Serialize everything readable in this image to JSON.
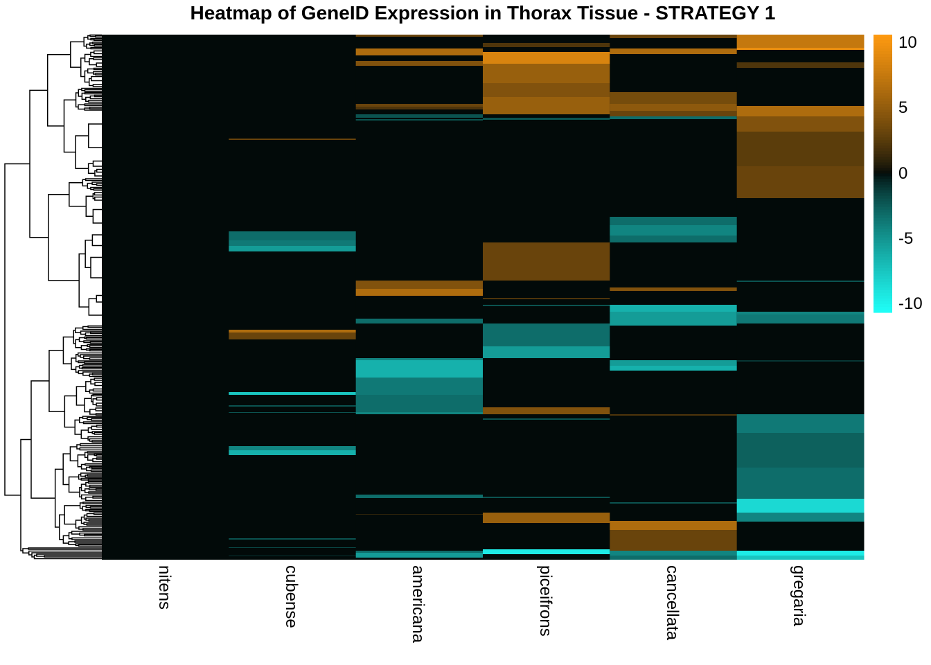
{
  "chart_data": {
    "type": "heatmap",
    "title": "Heatmap of GeneID Expression in Thorax Tissue - STRATEGY 1",
    "columns": [
      "nitens",
      "cubense",
      "americana",
      "piceifrons",
      "cancellata",
      "gregaria"
    ],
    "row_count": 758,
    "row_dendrogram": true,
    "default_value": 0,
    "colorscale": {
      "min": -10,
      "max": 10,
      "ticks": [
        10,
        5,
        0,
        -5,
        -10
      ],
      "colors": {
        "low": "#20fff8",
        "mid": "#020a09",
        "high": "#ff9a10"
      }
    },
    "bands_note_units": "rows (gene index, top to bottom), value",
    "bands": {
      "nitens": [],
      "cubense": [
        [
          150,
          152,
          3
        ],
        [
          284,
          297,
          -3
        ],
        [
          297,
          305,
          -3.5
        ],
        [
          305,
          313,
          -5
        ],
        [
          376,
          430,
          0
        ],
        [
          426,
          430,
          6
        ],
        [
          430,
          440,
          3
        ],
        [
          516,
          520,
          -7
        ],
        [
          535,
          537,
          -2
        ],
        [
          545,
          546,
          -2
        ],
        [
          594,
          600,
          -4
        ],
        [
          600,
          607,
          -6
        ],
        [
          727,
          729,
          -2
        ],
        [
          740,
          741,
          -1.5
        ],
        [
          752,
          753,
          -1
        ]
      ],
      "americana": [
        [
          0,
          3,
          3
        ],
        [
          20,
          30,
          6
        ],
        [
          38,
          45,
          4
        ],
        [
          100,
          104,
          3
        ],
        [
          104,
          108,
          2
        ],
        [
          115,
          120,
          -2
        ],
        [
          122,
          124,
          -2
        ],
        [
          355,
          367,
          4
        ],
        [
          367,
          377,
          6
        ],
        [
          410,
          417,
          -3
        ],
        [
          467,
          470,
          -4
        ],
        [
          470,
          495,
          -6
        ],
        [
          495,
          520,
          -3.5
        ],
        [
          520,
          545,
          -3
        ],
        [
          545,
          548,
          -4
        ],
        [
          664,
          669,
          -3
        ],
        [
          692,
          693,
          1
        ],
        [
          745,
          748,
          -3
        ],
        [
          748,
          755,
          -5
        ]
      ],
      "piceifrons": [
        [
          12,
          18,
          2
        ],
        [
          25,
          42,
          8
        ],
        [
          42,
          70,
          5
        ],
        [
          70,
          90,
          4
        ],
        [
          90,
          115,
          5
        ],
        [
          120,
          123,
          -2
        ],
        [
          300,
          355,
          3
        ],
        [
          380,
          382,
          2
        ],
        [
          390,
          392,
          -2
        ],
        [
          417,
          450,
          -3
        ],
        [
          450,
          467,
          -5
        ],
        [
          538,
          548,
          4
        ],
        [
          554,
          556,
          -2
        ],
        [
          667,
          669,
          -2
        ],
        [
          690,
          705,
          5
        ],
        [
          743,
          750,
          -9
        ]
      ],
      "cancellata": [
        [
          0,
          5,
          3
        ],
        [
          20,
          28,
          6
        ],
        [
          83,
          100,
          3.5
        ],
        [
          100,
          110,
          4.5
        ],
        [
          110,
          120,
          3
        ],
        [
          118,
          122,
          -3
        ],
        [
          263,
          275,
          -3
        ],
        [
          275,
          290,
          -4
        ],
        [
          290,
          300,
          -3
        ],
        [
          365,
          370,
          4
        ],
        [
          390,
          400,
          -6
        ],
        [
          400,
          420,
          -5
        ],
        [
          470,
          478,
          -5
        ],
        [
          478,
          485,
          -6
        ],
        [
          548,
          550,
          2
        ],
        [
          675,
          677,
          -2
        ],
        [
          702,
          715,
          6
        ],
        [
          715,
          745,
          3
        ],
        [
          745,
          752,
          -4
        ],
        [
          752,
          758,
          -3
        ]
      ],
      "gregaria": [
        [
          0,
          19,
          7
        ],
        [
          19,
          22,
          9
        ],
        [
          40,
          48,
          2
        ],
        [
          103,
          118,
          6
        ],
        [
          118,
          140,
          4
        ],
        [
          140,
          190,
          2.5
        ],
        [
          190,
          236,
          3
        ],
        [
          355,
          357,
          -2
        ],
        [
          400,
          404,
          -4
        ],
        [
          404,
          417,
          -3.5
        ],
        [
          470,
          472,
          -1
        ],
        [
          548,
          575,
          -3.5
        ],
        [
          575,
          625,
          -2.5
        ],
        [
          625,
          670,
          -3
        ],
        [
          670,
          690,
          -8
        ],
        [
          690,
          703,
          -4
        ],
        [
          745,
          752,
          -9
        ],
        [
          752,
          758,
          -7
        ]
      ]
    }
  }
}
